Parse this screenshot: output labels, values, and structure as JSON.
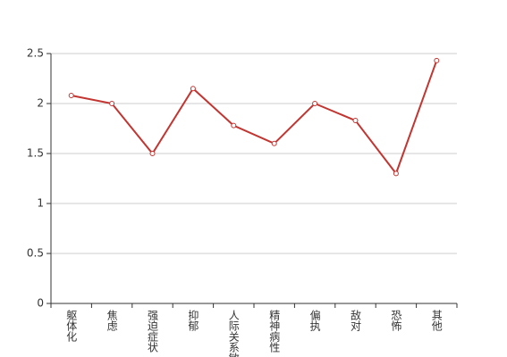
{
  "chart_data": {
    "type": "line",
    "categories": [
      "躯体化",
      "焦虑",
      "强迫症状",
      "抑郁",
      "人际关系敏感",
      "精神病性",
      "偏执",
      "敌对",
      "恐怖",
      "其他"
    ],
    "series": [
      {
        "color": "#c23531",
        "values": [
          2.08,
          2.0,
          1.5,
          2.15,
          1.78,
          1.6,
          2.0,
          1.83,
          1.3,
          2.43
        ]
      }
    ],
    "ylim": [
      0,
      2.5
    ],
    "yticks": [
      0,
      0.5,
      1,
      1.5,
      2,
      2.5
    ],
    "grid": true
  }
}
